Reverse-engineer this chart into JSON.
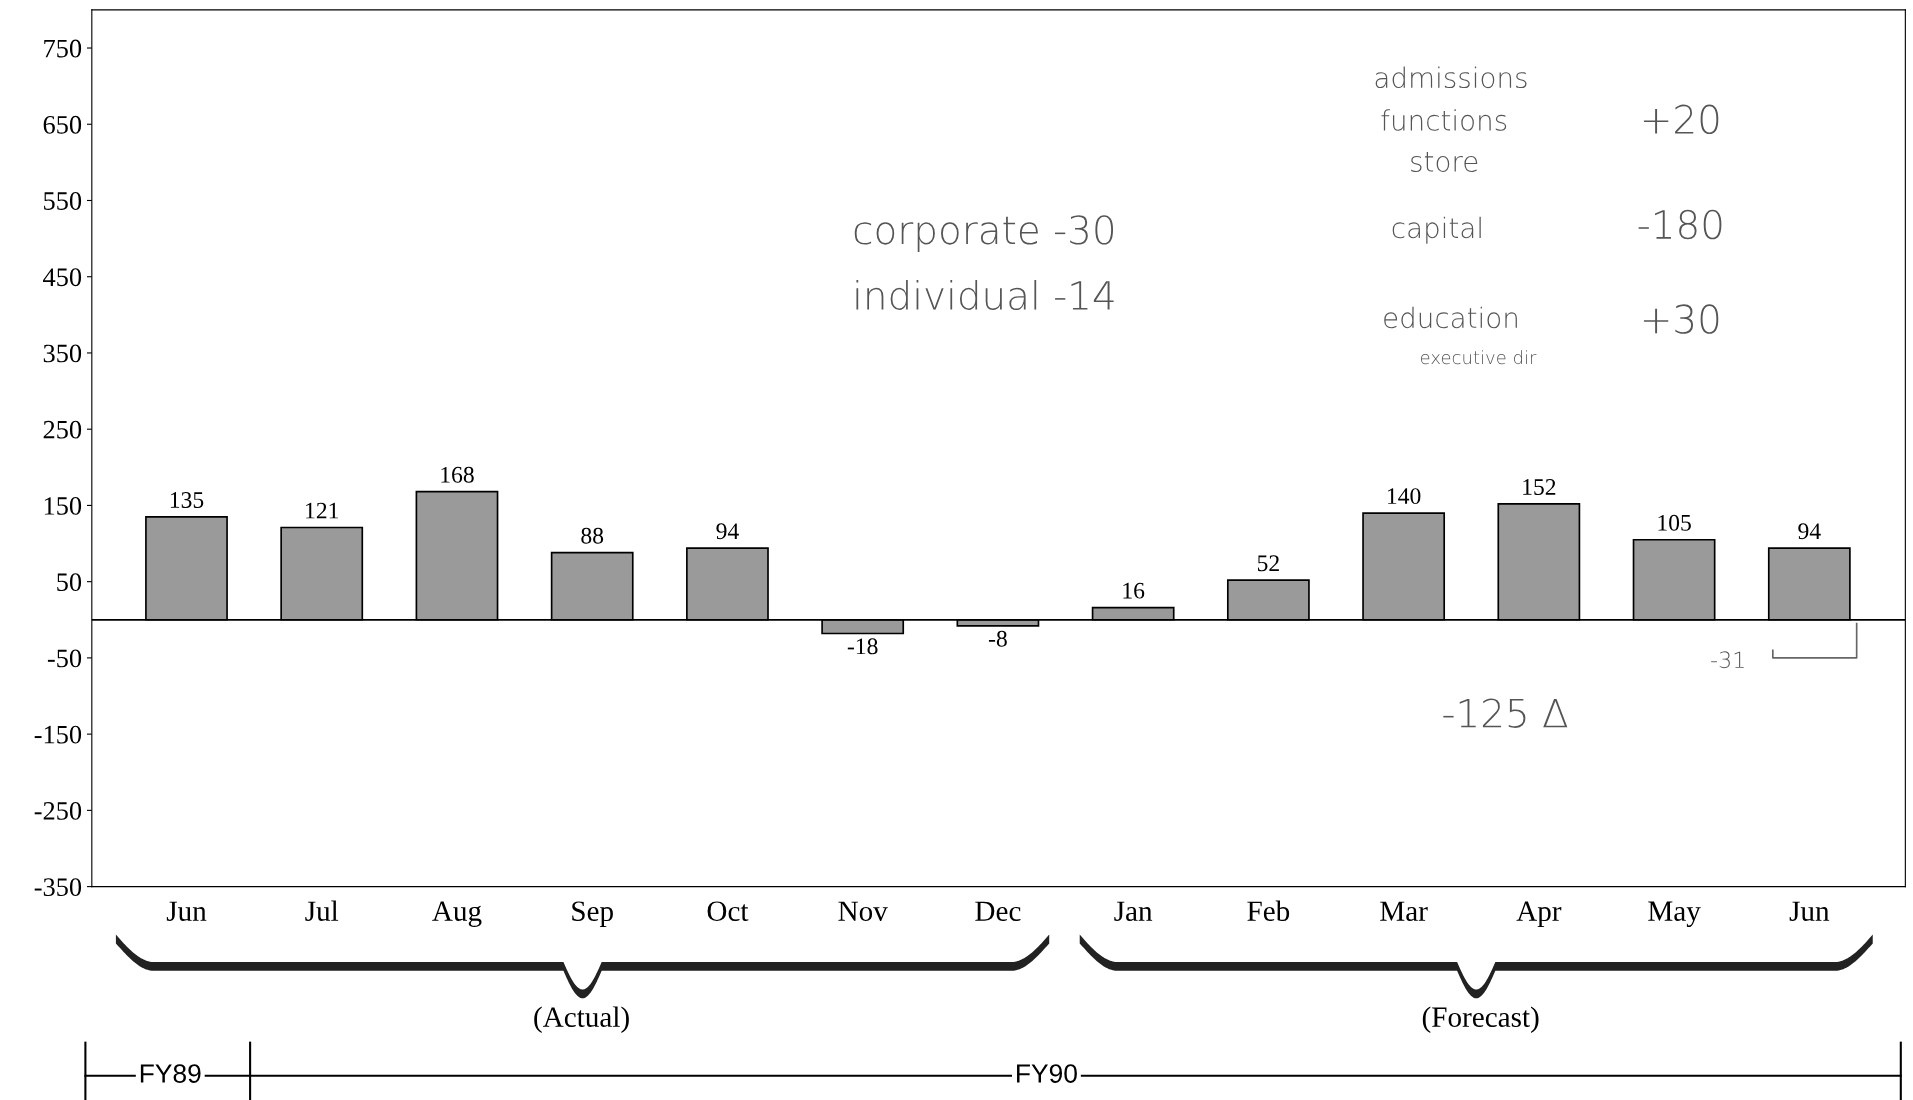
{
  "chart_data": {
    "type": "bar",
    "categories": [
      "Jun",
      "Jul",
      "Aug",
      "Sep",
      "Oct",
      "Nov",
      "Dec",
      "Jan",
      "Feb",
      "Mar",
      "Apr",
      "May",
      "Jun"
    ],
    "values": [
      135,
      121,
      168,
      88,
      94,
      -18,
      -8,
      16,
      52,
      140,
      152,
      105,
      94
    ],
    "color": "#9a9a9a",
    "ylim": [
      -350,
      800
    ],
    "yticks": [
      750,
      650,
      550,
      450,
      350,
      250,
      150,
      50,
      -50,
      -150,
      -250,
      -350
    ],
    "data_labels": true,
    "annotations": [
      "corporate -30",
      "individual -14",
      "admissions",
      "functions",
      "store",
      "+20",
      "capital",
      "-180",
      "education",
      "executive dir",
      "+30",
      "-125 Δ",
      "-31",
      "(Actual)",
      "(Forecast)",
      "FY89",
      "FY90"
    ]
  }
}
